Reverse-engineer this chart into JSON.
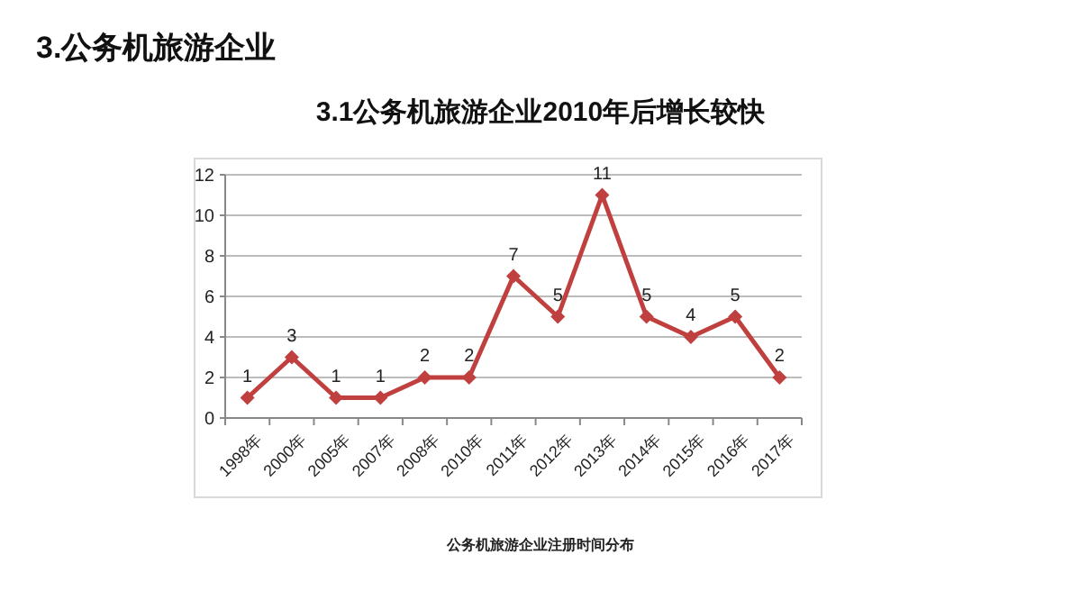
{
  "chart_data": {
    "type": "line",
    "title": "3.1公务机旅游企业2010年后增长较快",
    "annotations": [
      "3.公务机旅游企业",
      "公务机旅游企业注册时间分布"
    ],
    "categories": [
      "1998年",
      "2000年",
      "2005年",
      "2007年",
      "2008年",
      "2010年",
      "2011年",
      "2012年",
      "2013年",
      "2014年",
      "2015年",
      "2016年",
      "2017年"
    ],
    "series": [
      {
        "color": "#c0403f",
        "values": [
          1,
          3,
          1,
          1,
          2,
          2,
          7,
          5,
          11,
          5,
          4,
          5,
          2
        ]
      }
    ],
    "ylim": [
      0,
      12
    ],
    "yticks": [
      0,
      2,
      4,
      6,
      8,
      10,
      12
    ],
    "grid": "y",
    "marker": "diamond",
    "line_style": "solid",
    "data_labels": true
  }
}
